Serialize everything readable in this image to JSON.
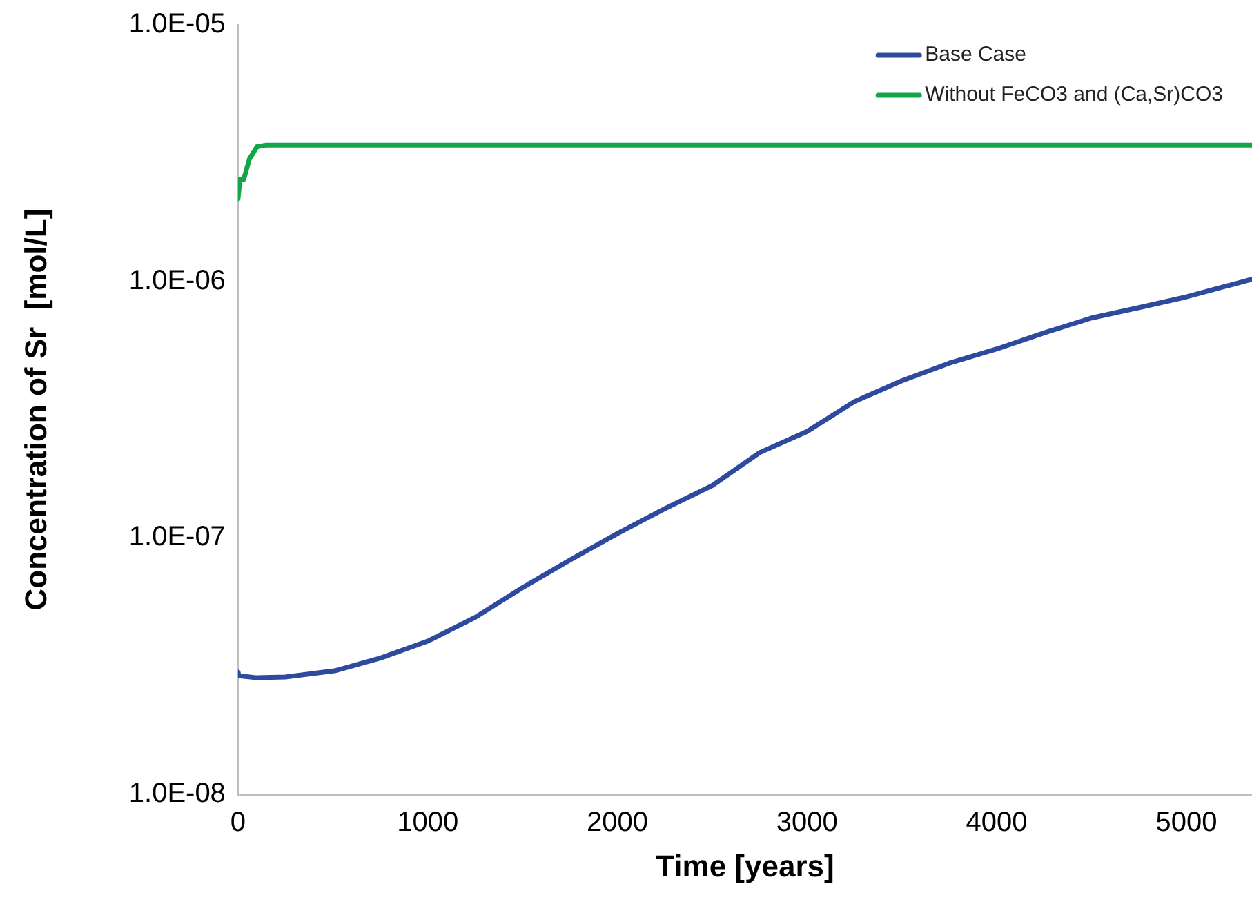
{
  "chart_data": {
    "type": "line",
    "xlabel": "Time [years]",
    "ylabel": "Concentration of Sr  [mol/L]",
    "log": "y",
    "legend": "top right",
    "grid": false,
    "marker": "none",
    "line_style": "solid",
    "xlim": [
      0,
      5346
    ],
    "xticks": [
      0,
      1000,
      2000,
      3000,
      4000,
      5000
    ],
    "ylim": [
      1e-08,
      1e-05
    ],
    "yticks": [
      {
        "value": 1e-08,
        "label": "1.0E-08"
      },
      {
        "value": 1e-07,
        "label": "1.0E-07"
      },
      {
        "value": 1e-06,
        "label": "1.0E-06"
      },
      {
        "value": 1e-05,
        "label": "1.0E-05"
      }
    ],
    "series": [
      {
        "name": "Base Case",
        "color": "#2e4a9e",
        "x": [
          0,
          5,
          100,
          250,
          515,
          750,
          1000,
          1250,
          1500,
          1750,
          2000,
          2250,
          2500,
          2750,
          3000,
          3250,
          3500,
          3750,
          4000,
          4250,
          4500,
          4750,
          5000,
          5346
        ],
        "values": [
          3e-08,
          2.9e-08,
          2.85e-08,
          2.87e-08,
          3.04e-08,
          3.4e-08,
          3.96e-08,
          4.9e-08,
          6.4e-08,
          8.2e-08,
          1.04e-07,
          1.3e-07,
          1.6e-07,
          2.15e-07,
          2.6e-07,
          3.4e-07,
          4.1e-07,
          4.8e-07,
          5.45e-07,
          6.3e-07,
          7.2e-07,
          7.9e-07,
          8.7e-07,
          1.02e-06
        ]
      },
      {
        "name": "Without FeCO3 and (Ca,Sr)CO3",
        "color": "#13a54a",
        "x": [
          0,
          10,
          30,
          60,
          100,
          150,
          5346
        ],
        "values": [
          2.1e-06,
          2.5e-06,
          2.5e-06,
          3e-06,
          3.35e-06,
          3.4e-06,
          3.4e-06
        ]
      }
    ]
  }
}
